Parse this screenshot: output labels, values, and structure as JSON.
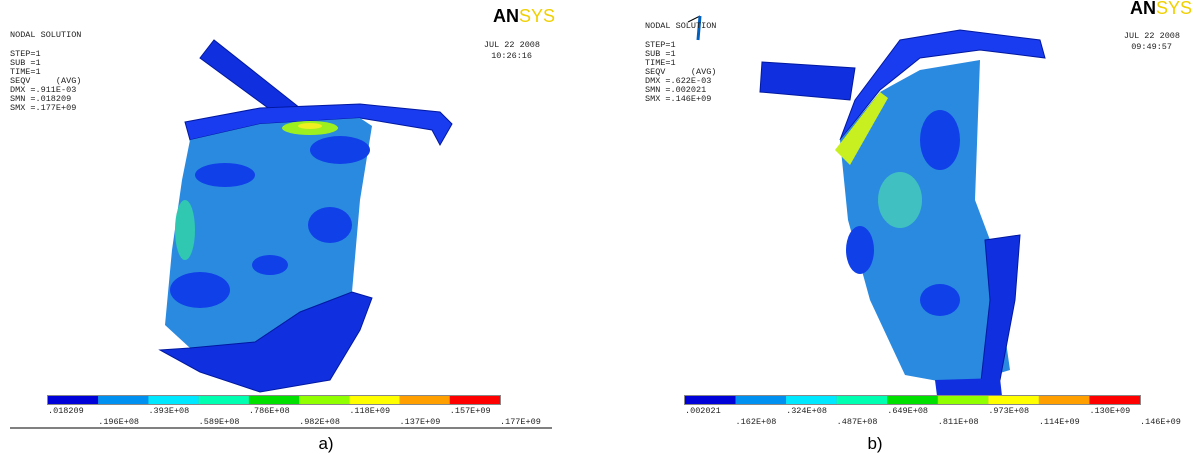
{
  "panels": [
    {
      "header": [
        "NODAL SOLUTION",
        "STEP=1",
        "SUB =1",
        "TIME=1",
        "SEQV     (AVG)",
        "DMX =.911E-03",
        "SMN =.018209",
        "SMX =.177E+09"
      ],
      "logo": {
        "bold": "AN",
        "light": "SYS"
      },
      "date": "JUL 22 2008",
      "time": "10:26:16",
      "legend": [
        ".018209",
        ".196E+08",
        ".393E+08",
        ".589E+08",
        ".786E+08",
        ".982E+08",
        ".118E+09",
        ".137E+09",
        ".157E+09",
        ".177E+09"
      ],
      "caption": "a)"
    },
    {
      "header": [
        "NODAL SOLUTION",
        "STEP=1",
        "SUB =1",
        "TIME=1",
        "SEQV     (AVG)",
        "DMX =.622E-03",
        "SMN =.002021",
        "SMX =.146E+09"
      ],
      "logo": {
        "bold": "AN",
        "light": "SYS"
      },
      "date": "JUL 22 2008",
      "time": "09:49:57",
      "legend": [
        ".002021",
        ".162E+08",
        ".324E+08",
        ".487E+08",
        ".649E+08",
        ".811E+08",
        ".973E+08",
        ".114E+09",
        ".130E+09",
        ".146E+09"
      ],
      "caption": "b)"
    }
  ]
}
